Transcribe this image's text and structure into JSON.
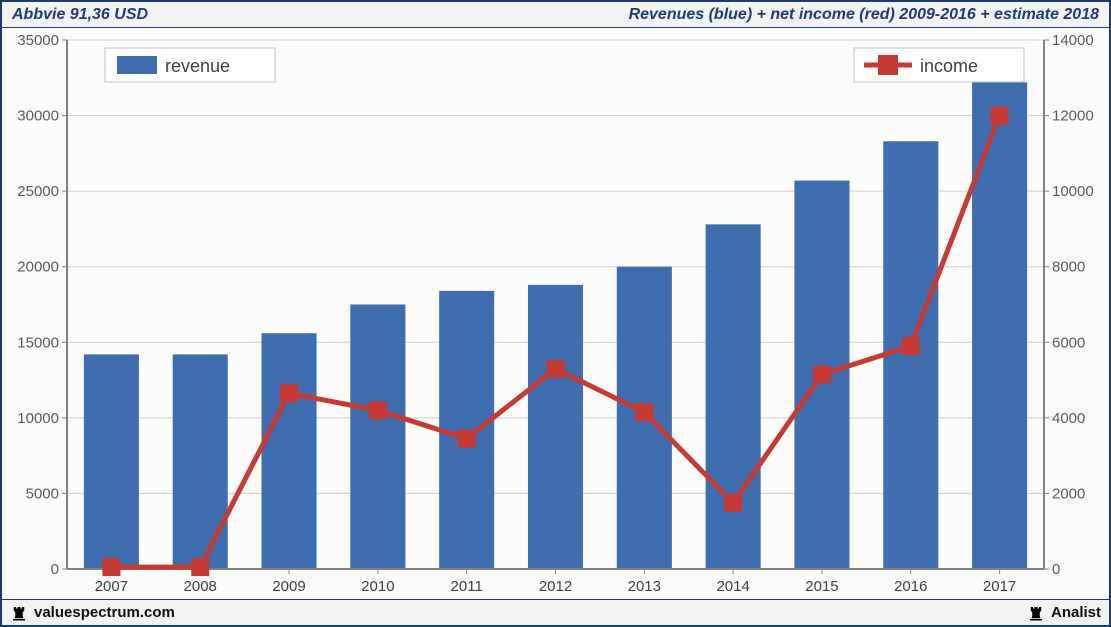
{
  "header": {
    "title_left": "Abbvie 91,36 USD",
    "title_right": "Revenues (blue) + net income (red) 2009-2016 + estimate 2018"
  },
  "footer": {
    "brand_left": "valuespectrum.com",
    "brand_right": "Analist"
  },
  "chart": {
    "type": "bar+line",
    "background_color": "#fcfcfa",
    "plot_background_color": "#fdfdfb",
    "grid_color": "#cfcfcf",
    "axis_color": "#808080",
    "tick_label_color": "#5a5a5a",
    "x": {
      "categories": [
        "2007",
        "2008",
        "2009",
        "2010",
        "2011",
        "2012",
        "2013",
        "2014",
        "2015",
        "2016",
        "2017"
      ],
      "label_fontsize": 15
    },
    "y_left": {
      "min": 0,
      "max": 35000,
      "step": 5000,
      "fontsize": 15
    },
    "y_right": {
      "min": 0,
      "max": 14000,
      "step": 2000,
      "fontsize": 15
    },
    "revenue": {
      "label": "revenue",
      "color": "#3e6eb0",
      "values": [
        14200,
        14200,
        15600,
        17500,
        18400,
        18800,
        20000,
        22800,
        25700,
        28300,
        32200
      ],
      "bar_width_ratio": 0.62
    },
    "income": {
      "label": "income",
      "color": "#c73a34",
      "marker_fill": "#c73a34",
      "marker_size": 16,
      "line_width": 5,
      "values": [
        50,
        50,
        4650,
        4200,
        3450,
        5300,
        4150,
        1750,
        5150,
        5900,
        12000
      ]
    },
    "legend": {
      "revenue_label": "revenue",
      "income_label": "income",
      "fontsize": 18
    }
  }
}
